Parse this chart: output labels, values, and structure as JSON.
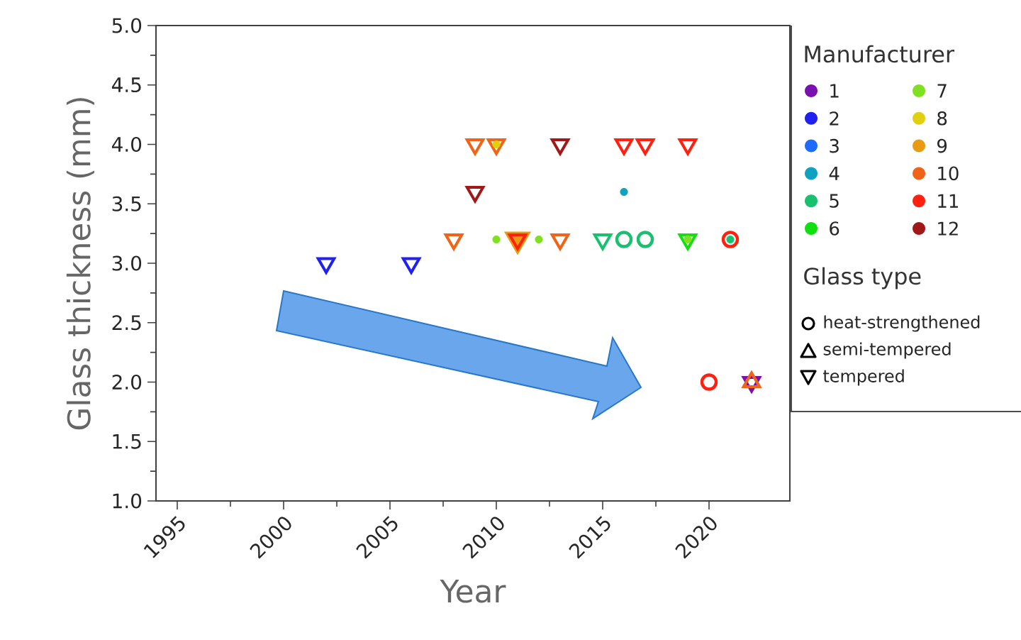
{
  "chart_data": {
    "type": "scatter",
    "xlabel": "Year",
    "ylabel": "Glass thickness (mm)",
    "legend_title": "Manufacturer",
    "legend": "right",
    "grid": false,
    "annotations": [
      "Glass type",
      "heat-strengthened",
      "semi-tempered",
      "tempered"
    ],
    "xlim": [
      1994,
      2023.8
    ],
    "xticks": [
      1995,
      2000,
      2005,
      2010,
      2015,
      2020
    ],
    "ylim": [
      1,
      5
    ],
    "yticks": [
      {
        "value": 1,
        "label": "1.0"
      },
      {
        "value": 1.5,
        "label": "1.5"
      },
      {
        "value": 2,
        "label": "2.0"
      },
      {
        "value": 2.5,
        "label": "2.5"
      },
      {
        "value": 3,
        "label": "3.0"
      },
      {
        "value": 3.5,
        "label": "3.5"
      },
      {
        "value": 4,
        "label": "4.0"
      },
      {
        "value": 4.5,
        "label": "4.5"
      },
      {
        "value": 5,
        "label": "5.0"
      }
    ],
    "series": [
      {
        "name": "1",
        "color": "#7a10b0",
        "marker": "triangle down",
        "x": [
          2022
        ],
        "values": [
          2.0
        ]
      },
      {
        "name": "2",
        "color": "#2020f0",
        "marker": "triangle down",
        "x": [
          2002,
          2006
        ],
        "values": [
          3.0,
          3.0
        ]
      },
      {
        "name": "3",
        "color": "#1e6cff",
        "marker": "circle"
      },
      {
        "name": "4",
        "color": "#10a0c0",
        "marker": "dot",
        "x": [
          2016
        ],
        "values": [
          3.6
        ]
      },
      {
        "name": "5",
        "color": "#18c070",
        "marker": "triangle down",
        "x": [
          2015
        ],
        "values": [
          3.2
        ]
      },
      {
        "color": "#18c070",
        "marker": "circle",
        "x": [
          2016,
          2017
        ],
        "values": [
          3.2,
          3.2
        ]
      },
      {
        "color": "#18c070",
        "marker": "dot",
        "x": [
          2021
        ],
        "values": [
          3.2
        ]
      },
      {
        "name": "6",
        "color": "#10e010",
        "marker": "triangle down",
        "x": [
          2019
        ],
        "values": [
          3.2
        ]
      },
      {
        "name": "7",
        "color": "#80e020",
        "marker": "dot",
        "x": [
          2010,
          2012,
          2019
        ],
        "values": [
          3.2,
          3.2,
          3.2
        ]
      },
      {
        "name": "8",
        "color": "#e0d010",
        "marker": "dot",
        "x": [
          2010
        ],
        "values": [
          4.0
        ]
      },
      {
        "name": "9",
        "color": "#e89a10",
        "marker": "triangle down",
        "x": [
          2011
        ],
        "values": [
          3.2
        ]
      },
      {
        "name": "10",
        "color": "#f06418",
        "marker": "triangle down",
        "x": [
          2008,
          2009,
          2010,
          2013
        ],
        "values": [
          3.2,
          4.0,
          4.0,
          3.2
        ]
      },
      {
        "color": "#f06418",
        "marker": "triangle",
        "x": [
          2022
        ],
        "values": [
          2.0
        ]
      },
      {
        "name": "11",
        "color": "#ff2010",
        "marker": "triangle down",
        "x": [
          2011,
          2016,
          2017,
          2019
        ],
        "values": [
          3.2,
          4.0,
          4.0,
          4.0
        ]
      },
      {
        "color": "#ff2010",
        "marker": "circle",
        "x": [
          2020,
          2021
        ],
        "values": [
          2.0,
          3.2
        ]
      },
      {
        "name": "12",
        "color": "#a01818",
        "marker": "triangle down",
        "x": [
          2009,
          2013
        ],
        "values": [
          3.6,
          4.0
        ]
      }
    ]
  }
}
